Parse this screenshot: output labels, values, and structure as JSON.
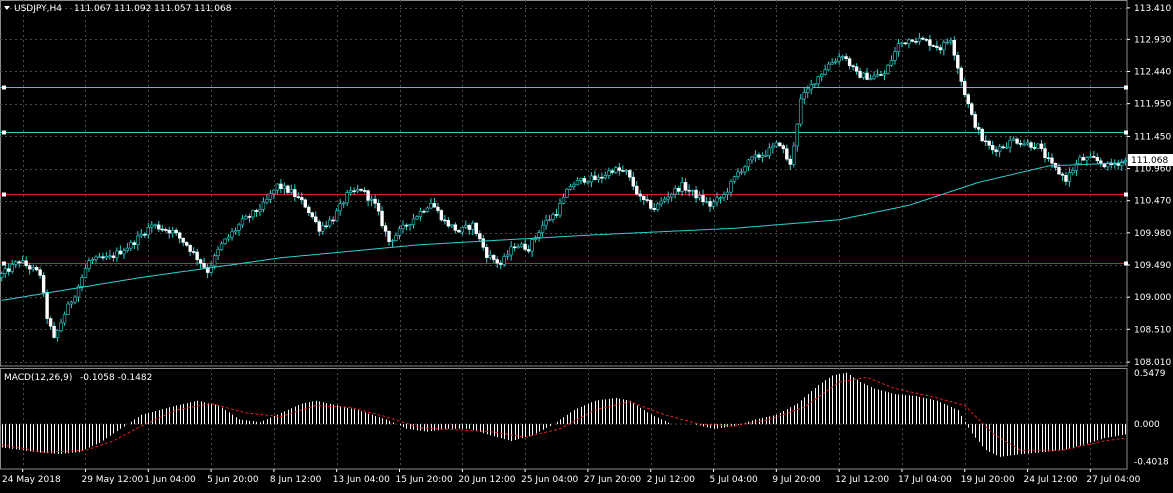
{
  "header": {
    "symbol": "USDJPY,H4",
    "ohlc": "111.067 111.092 111.057 111.068"
  },
  "colors": {
    "background": "#000000",
    "grid": "#4a4a4a",
    "candle": "#2fd0cf",
    "hline_cyan": "#2fd0cf",
    "hline_red": "#e02020",
    "ma": "#2fd0cf",
    "macd_hist": "#ffffff",
    "macd_signal": "#e02020",
    "axis_text": "#ffffff",
    "price_tag_bg": "#ffffff",
    "price_tag_text": "#000000"
  },
  "chart_data": [
    {
      "type": "candlestick",
      "title": "USDJPY,H4",
      "ylim": [
        107.95,
        113.53
      ],
      "y_ticks": [
        "113.410",
        "112.930",
        "112.440",
        "111.950",
        "111.450",
        "110.960",
        "110.470",
        "109.980",
        "109.490",
        "109.000",
        "108.510",
        "108.010"
      ],
      "current_price": "111.068",
      "horizontal_lines": [
        {
          "price": 112.2,
          "color": "cyan"
        },
        {
          "price": 111.52,
          "color": "cyan"
        },
        {
          "price": 110.57,
          "color": "red"
        },
        {
          "price": 109.52,
          "color": "red"
        }
      ],
      "x_labels": [
        "24 May 2018",
        "29 May 12:00",
        "1 Jun 04:00",
        "5 Jun 20:00",
        "8 Jun 12:00",
        "13 Jun 04:00",
        "15 Jun 20:00",
        "20 Jun 12:00",
        "25 Jun 04:00",
        "27 Jun 20:00",
        "2 Jul 12:00",
        "5 Jul 04:00",
        "9 Jul 20:00",
        "12 Jul 12:00",
        "17 Jul 04:00",
        "19 Jul 20:00",
        "24 Jul 12:00",
        "27 Jul 04:00"
      ],
      "price_path": [
        [
          0,
          109.3
        ],
        [
          6,
          109.55
        ],
        [
          12,
          109.35
        ],
        [
          14,
          108.7
        ],
        [
          16,
          108.35
        ],
        [
          19,
          108.75
        ],
        [
          22,
          109.05
        ],
        [
          26,
          109.55
        ],
        [
          32,
          109.6
        ],
        [
          38,
          109.8
        ],
        [
          44,
          110.1
        ],
        [
          50,
          110.0
        ],
        [
          54,
          109.8
        ],
        [
          57,
          109.6
        ],
        [
          60,
          109.4
        ],
        [
          64,
          109.8
        ],
        [
          70,
          110.15
        ],
        [
          76,
          110.4
        ],
        [
          80,
          110.7
        ],
        [
          84,
          110.6
        ],
        [
          88,
          110.4
        ],
        [
          92,
          110.05
        ],
        [
          96,
          110.2
        ],
        [
          100,
          110.55
        ],
        [
          104,
          110.65
        ],
        [
          108,
          110.4
        ],
        [
          112,
          109.85
        ],
        [
          116,
          110.05
        ],
        [
          120,
          110.25
        ],
        [
          124,
          110.45
        ],
        [
          128,
          110.15
        ],
        [
          132,
          110.0
        ],
        [
          136,
          110.1
        ],
        [
          140,
          109.65
        ],
        [
          144,
          109.5
        ],
        [
          148,
          109.8
        ],
        [
          152,
          109.75
        ],
        [
          156,
          110.1
        ],
        [
          160,
          110.3
        ],
        [
          164,
          110.7
        ],
        [
          168,
          110.8
        ],
        [
          172,
          110.8
        ],
        [
          176,
          110.95
        ],
        [
          180,
          110.9
        ],
        [
          184,
          110.5
        ],
        [
          188,
          110.35
        ],
        [
          192,
          110.55
        ],
        [
          196,
          110.7
        ],
        [
          200,
          110.55
        ],
        [
          204,
          110.4
        ],
        [
          208,
          110.55
        ],
        [
          212,
          110.9
        ],
        [
          216,
          111.1
        ],
        [
          220,
          111.2
        ],
        [
          224,
          111.35
        ],
        [
          227,
          111.0
        ],
        [
          230,
          112.0
        ],
        [
          234,
          112.3
        ],
        [
          238,
          112.55
        ],
        [
          242,
          112.7
        ],
        [
          246,
          112.4
        ],
        [
          250,
          112.35
        ],
        [
          254,
          112.4
        ],
        [
          258,
          112.85
        ],
        [
          262,
          112.95
        ],
        [
          266,
          112.9
        ],
        [
          270,
          112.8
        ],
        [
          273,
          112.95
        ],
        [
          276,
          112.3
        ],
        [
          279,
          111.75
        ],
        [
          282,
          111.4
        ],
        [
          285,
          111.25
        ],
        [
          288,
          111.3
        ],
        [
          291,
          111.4
        ],
        [
          294,
          111.35
        ],
        [
          298,
          111.3
        ],
        [
          302,
          111.0
        ],
        [
          306,
          110.8
        ],
        [
          310,
          111.1
        ],
        [
          314,
          111.1
        ],
        [
          318,
          111.0
        ],
        [
          322,
          111.07
        ]
      ],
      "moving_average": [
        [
          0,
          108.95
        ],
        [
          40,
          109.3
        ],
        [
          80,
          109.6
        ],
        [
          120,
          109.8
        ],
        [
          170,
          109.95
        ],
        [
          210,
          110.05
        ],
        [
          240,
          110.18
        ],
        [
          260,
          110.4
        ],
        [
          280,
          110.75
        ],
        [
          300,
          111.0
        ],
        [
          322,
          111.05
        ]
      ]
    },
    {
      "type": "histogram",
      "title": "MACD(12,26,9)",
      "indicator_values": "-0.1058 -0.1482",
      "ylim": [
        -0.48,
        0.6
      ],
      "y_ticks": [
        "0.5479",
        "0.000",
        "-0.4018"
      ],
      "histogram_path": [
        [
          0,
          -0.25
        ],
        [
          10,
          -0.3
        ],
        [
          16,
          -0.32
        ],
        [
          22,
          -0.3
        ],
        [
          28,
          -0.2
        ],
        [
          34,
          -0.05
        ],
        [
          40,
          0.1
        ],
        [
          50,
          0.2
        ],
        [
          56,
          0.25
        ],
        [
          62,
          0.2
        ],
        [
          68,
          0.05
        ],
        [
          74,
          0.02
        ],
        [
          80,
          0.12
        ],
        [
          86,
          0.22
        ],
        [
          90,
          0.25
        ],
        [
          96,
          0.2
        ],
        [
          102,
          0.15
        ],
        [
          110,
          0.05
        ],
        [
          116,
          -0.05
        ],
        [
          122,
          -0.08
        ],
        [
          128,
          -0.05
        ],
        [
          134,
          -0.05
        ],
        [
          140,
          -0.12
        ],
        [
          146,
          -0.18
        ],
        [
          152,
          -0.12
        ],
        [
          158,
          0.0
        ],
        [
          164,
          0.15
        ],
        [
          170,
          0.25
        ],
        [
          176,
          0.28
        ],
        [
          180,
          0.25
        ],
        [
          186,
          0.1
        ],
        [
          192,
          0.0
        ],
        [
          198,
          0.0
        ],
        [
          204,
          -0.05
        ],
        [
          210,
          -0.02
        ],
        [
          216,
          0.05
        ],
        [
          222,
          0.1
        ],
        [
          228,
          0.22
        ],
        [
          234,
          0.42
        ],
        [
          238,
          0.52
        ],
        [
          242,
          0.55
        ],
        [
          246,
          0.45
        ],
        [
          250,
          0.38
        ],
        [
          256,
          0.32
        ],
        [
          262,
          0.3
        ],
        [
          268,
          0.25
        ],
        [
          274,
          0.15
        ],
        [
          278,
          -0.1
        ],
        [
          282,
          -0.28
        ],
        [
          286,
          -0.35
        ],
        [
          292,
          -0.32
        ],
        [
          298,
          -0.3
        ],
        [
          304,
          -0.28
        ],
        [
          310,
          -0.22
        ],
        [
          316,
          -0.15
        ],
        [
          322,
          -0.11
        ]
      ],
      "signal_path": [
        [
          0,
          -0.22
        ],
        [
          12,
          -0.3
        ],
        [
          24,
          -0.28
        ],
        [
          32,
          -0.18
        ],
        [
          40,
          -0.02
        ],
        [
          50,
          0.15
        ],
        [
          60,
          0.22
        ],
        [
          70,
          0.12
        ],
        [
          80,
          0.08
        ],
        [
          90,
          0.2
        ],
        [
          100,
          0.18
        ],
        [
          110,
          0.08
        ],
        [
          120,
          -0.04
        ],
        [
          130,
          -0.06
        ],
        [
          140,
          -0.08
        ],
        [
          150,
          -0.14
        ],
        [
          160,
          -0.05
        ],
        [
          170,
          0.15
        ],
        [
          180,
          0.24
        ],
        [
          190,
          0.1
        ],
        [
          200,
          0.0
        ],
        [
          210,
          -0.02
        ],
        [
          220,
          0.05
        ],
        [
          230,
          0.18
        ],
        [
          240,
          0.45
        ],
        [
          248,
          0.5
        ],
        [
          256,
          0.38
        ],
        [
          266,
          0.3
        ],
        [
          276,
          0.2
        ],
        [
          284,
          -0.1
        ],
        [
          292,
          -0.28
        ],
        [
          304,
          -0.28
        ],
        [
          316,
          -0.18
        ],
        [
          322,
          -0.15
        ]
      ]
    }
  ]
}
